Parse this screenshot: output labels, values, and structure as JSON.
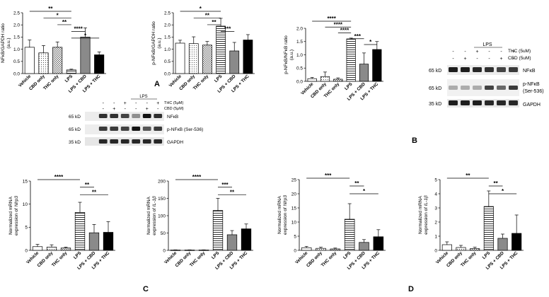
{
  "panel_letters": [
    "A",
    "B",
    "C",
    "D"
  ],
  "categories": [
    "Vehicle",
    "CBD only",
    "THC only",
    "LPS",
    "LPS + CBD",
    "LPS + THC"
  ],
  "chart_data": [
    {
      "type": "bar",
      "panel": "A",
      "ylabel": "NFκB/GAPDH ratio\n(a.u.)",
      "ylim": [
        0,
        2.5
      ],
      "yticks": [
        "0.0",
        "0.5",
        "1.0",
        "1.5",
        "2.0",
        "2.5"
      ],
      "values": [
        1.08,
        0.85,
        1.08,
        0.15,
        1.5,
        0.77
      ],
      "errors": [
        0.3,
        0.3,
        0.22,
        0.03,
        0.38,
        0.12
      ],
      "sig": [
        {
          "from": 0,
          "to": 3,
          "label": "**"
        },
        {
          "from": 1,
          "to": 3,
          "label": "*"
        },
        {
          "from": 2,
          "to": 3,
          "label": "**"
        },
        {
          "from": 3,
          "to": 4,
          "label": "****"
        },
        {
          "from": 3,
          "to": 5,
          "label": "*"
        }
      ]
    },
    {
      "type": "bar",
      "panel": "A",
      "ylabel": "p-NFκB/GAPDH ratio\n(a.u.)",
      "ylim": [
        0,
        2.5
      ],
      "yticks": [
        "0.0",
        "0.5",
        "1.0",
        "1.5",
        "2.0",
        "2.5"
      ],
      "values": [
        1.25,
        1.23,
        1.17,
        1.95,
        0.93,
        1.38
      ],
      "errors": [
        0.12,
        0.28,
        0.15,
        0.32,
        0.35,
        0.22
      ],
      "sig": [
        {
          "from": 0,
          "to": 3,
          "label": "*"
        },
        {
          "from": 1,
          "to": 3,
          "label": "**"
        },
        {
          "from": 2,
          "to": 3,
          "label": "**"
        },
        {
          "from": 3,
          "to": 4,
          "label": "***"
        }
      ]
    },
    {
      "type": "bar",
      "panel": "B",
      "ylabel": "p-NFκB/NFκB ratio\n(a.u.)",
      "ylim": [
        0,
        2.0
      ],
      "yticks": [
        "0.0",
        "0.5",
        "1.0",
        "1.5",
        "2.0"
      ],
      "values": [
        0.1,
        0.18,
        0.08,
        1.6,
        0.65,
        1.2
      ],
      "errors": [
        0.05,
        0.17,
        0.05,
        0.03,
        0.42,
        0.3
      ],
      "sig": [
        {
          "from": 0,
          "to": 3,
          "label": "****"
        },
        {
          "from": 1,
          "to": 3,
          "label": "****"
        },
        {
          "from": 2,
          "to": 3,
          "label": "****"
        },
        {
          "from": 3,
          "to": 4,
          "label": "***"
        },
        {
          "from": 4,
          "to": 5,
          "label": "*"
        }
      ]
    },
    {
      "type": "bar",
      "panel": "C",
      "ylabel": "Normalized mRNA\nexpression of Nlrp3",
      "ylim": [
        0,
        15
      ],
      "yticks": [
        "0",
        "5",
        "10",
        "15"
      ],
      "values": [
        0.8,
        0.7,
        0.5,
        8.2,
        3.8,
        3.9
      ],
      "errors": [
        0.5,
        0.5,
        0.2,
        2.2,
        1.8,
        2.3
      ],
      "sig": [
        {
          "from": 0,
          "to": 3,
          "label": "****"
        },
        {
          "from": 3,
          "to": 4,
          "label": "**"
        },
        {
          "from": 3,
          "to": 5,
          "label": "**"
        }
      ]
    },
    {
      "type": "bar",
      "panel": "C",
      "ylabel": "Normalized mRNA\nexpression of IL-1β",
      "ylim": [
        0,
        200
      ],
      "yticks": [
        "0",
        "50",
        "100",
        "150",
        "200"
      ],
      "values": [
        1,
        1,
        1,
        115,
        45,
        62
      ],
      "errors": [
        0.5,
        0.5,
        0.5,
        35,
        12,
        14
      ],
      "sig": [
        {
          "from": 0,
          "to": 3,
          "label": "****"
        },
        {
          "from": 3,
          "to": 4,
          "label": "***"
        },
        {
          "from": 3,
          "to": 5,
          "label": "**"
        }
      ]
    },
    {
      "type": "bar",
      "panel": "D",
      "ylabel": "Normalized mRNA\nexpression of Nlrp3",
      "ylim": [
        0,
        25
      ],
      "yticks": [
        "0",
        "5",
        "10",
        "15",
        "20",
        "25"
      ],
      "values": [
        0.9,
        0.7,
        0.5,
        11,
        2.8,
        4.8
      ],
      "errors": [
        0.5,
        0.4,
        0.3,
        5.5,
        1.0,
        2.5
      ],
      "sig": [
        {
          "from": 0,
          "to": 3,
          "label": "***"
        },
        {
          "from": 3,
          "to": 4,
          "label": "**"
        },
        {
          "from": 3,
          "to": 5,
          "label": "*"
        }
      ]
    },
    {
      "type": "bar",
      "panel": "D",
      "ylabel": "Normalized mRNA\nexpression of IL-1β",
      "ylim": [
        0,
        5
      ],
      "yticks": [
        "0",
        "1",
        "2",
        "3",
        "4",
        "5"
      ],
      "values": [
        0.4,
        0.2,
        0.12,
        3.1,
        0.85,
        1.2
      ],
      "errors": [
        0.2,
        0.15,
        0.1,
        1.1,
        0.3,
        1.3
      ],
      "sig": [
        {
          "from": 0,
          "to": 3,
          "label": "**"
        },
        {
          "from": 3,
          "to": 4,
          "label": "**"
        },
        {
          "from": 3,
          "to": 5,
          "label": "*"
        }
      ]
    }
  ],
  "blot_B": {
    "treat_rows": [
      {
        "signs": [
          "-",
          "-",
          "+",
          "-",
          "-",
          "+"
        ],
        "label": "THC (5uM)"
      },
      {
        "signs": [
          "-",
          "+",
          "-",
          "-",
          "+",
          "-"
        ],
        "label": "CBD (5uM)"
      }
    ],
    "lps_label": "LPS",
    "kd_labels": [
      "65 kD",
      "65 kD",
      "35 kD"
    ],
    "band_labels": [
      "NFκB",
      "p-NFκB\n(Ser-536)",
      "GAPDH"
    ]
  },
  "blot_A": {
    "treat_rows": [
      {
        "signs": [
          "-",
          "-",
          "+",
          "-",
          "-",
          "+"
        ],
        "label": "THC (5μM)"
      },
      {
        "signs": [
          "-",
          "+",
          "-",
          "-",
          "+",
          "-"
        ],
        "label": "CBD (5μM)"
      }
    ],
    "lps_label": "LPS",
    "kd_labels": [
      "65 kD",
      "65 kD",
      "35 kD"
    ],
    "band_labels": [
      "NFκB",
      "p-NFκB (Ser-536)",
      "GAPDH"
    ]
  },
  "colors": {
    "bar_outline": "#000000",
    "lps_plus_thc": "#000000",
    "lps_plus_cbd": "#888888",
    "background": "#ffffff"
  }
}
